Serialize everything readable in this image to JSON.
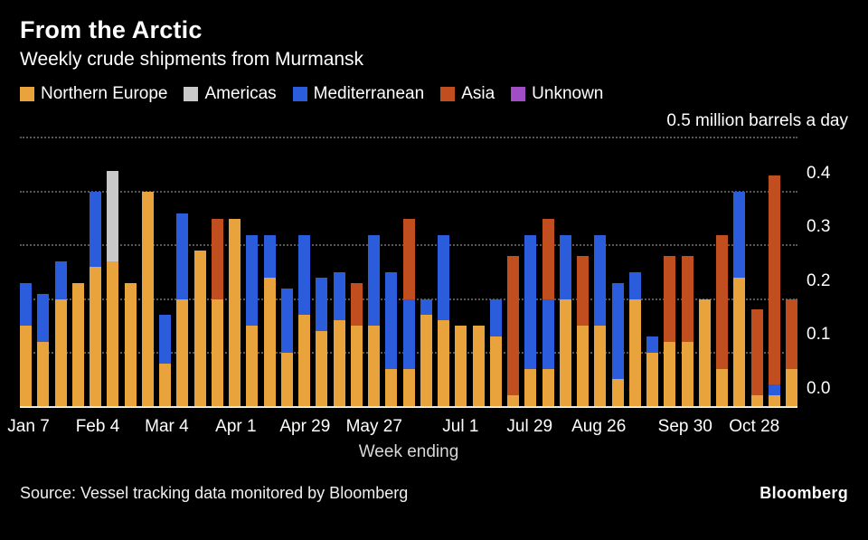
{
  "header": {
    "title": "From the Arctic",
    "subtitle": "Weekly crude shipments from Murmansk"
  },
  "legend": {
    "items": [
      {
        "label": "Northern Europe",
        "color": "#E8A33D"
      },
      {
        "label": "Americas",
        "color": "#C9C9C9"
      },
      {
        "label": "Mediterranean",
        "color": "#2A5CDC"
      },
      {
        "label": "Asia",
        "color": "#C04E1F"
      },
      {
        "label": "Unknown",
        "color": "#A14EC4"
      }
    ]
  },
  "chart": {
    "unit_label": "0.5 million barrels a day",
    "xlabel": "Week ending",
    "y_ticks": [
      "0.0",
      "0.1",
      "0.2",
      "0.3",
      "0.4"
    ]
  },
  "chart_data": {
    "type": "stacked-bar",
    "title": "From the Arctic",
    "subtitle": "Weekly crude shipments from Murmansk",
    "ylabel": "million barrels a day",
    "ylim": [
      0,
      0.5
    ],
    "grid": true,
    "legend_position": "top",
    "n_weeks": 45,
    "x_tick_labels": [
      {
        "index": 0,
        "label": "Jan 7"
      },
      {
        "index": 4,
        "label": "Feb 4"
      },
      {
        "index": 8,
        "label": "Mar 4"
      },
      {
        "index": 12,
        "label": "Apr 1"
      },
      {
        "index": 16,
        "label": "Apr 29"
      },
      {
        "index": 20,
        "label": "May 27"
      },
      {
        "index": 25,
        "label": "Jul 1"
      },
      {
        "index": 29,
        "label": "Jul 29"
      },
      {
        "index": 33,
        "label": "Aug 26"
      },
      {
        "index": 38,
        "label": "Sep 30"
      },
      {
        "index": 42,
        "label": "Oct 28"
      }
    ],
    "series": [
      {
        "name": "Northern Europe",
        "color": "#E8A33D",
        "values": [
          0.15,
          0.12,
          0.2,
          0.23,
          0.26,
          0.27,
          0.23,
          0.4,
          0.08,
          0.2,
          0.29,
          0.2,
          0.35,
          0.15,
          0.24,
          0.1,
          0.17,
          0.14,
          0.16,
          0.15,
          0.15,
          0.07,
          0.07,
          0.17,
          0.16,
          0.15,
          0.15,
          0.13,
          0.02,
          0.07,
          0.07,
          0.2,
          0.15,
          0.15,
          0.05,
          0.2,
          0.1,
          0.12,
          0.12,
          0.2,
          0.07,
          0.24,
          0.02,
          0.02,
          0.07
        ]
      },
      {
        "name": "Americas",
        "color": "#C9C9C9",
        "values": [
          0,
          0,
          0,
          0,
          0,
          0.17,
          0,
          0,
          0,
          0,
          0,
          0,
          0,
          0,
          0,
          0,
          0,
          0,
          0,
          0,
          0,
          0,
          0,
          0,
          0,
          0,
          0,
          0,
          0,
          0,
          0,
          0,
          0,
          0,
          0,
          0,
          0,
          0,
          0,
          0,
          0,
          0,
          0,
          0,
          0
        ]
      },
      {
        "name": "Mediterranean",
        "color": "#2A5CDC",
        "values": [
          0.08,
          0.09,
          0.07,
          0,
          0.14,
          0,
          0,
          0,
          0.09,
          0.16,
          0,
          0,
          0,
          0.17,
          0.08,
          0.12,
          0.15,
          0.1,
          0.09,
          0,
          0.17,
          0.18,
          0.13,
          0.03,
          0.16,
          0,
          0,
          0.07,
          0,
          0.25,
          0.13,
          0.12,
          0,
          0.17,
          0.18,
          0.05,
          0.03,
          0,
          0,
          0,
          0,
          0.16,
          0,
          0.02,
          0
        ]
      },
      {
        "name": "Asia",
        "color": "#C04E1F",
        "values": [
          0,
          0,
          0,
          0,
          0,
          0,
          0,
          0,
          0,
          0,
          0,
          0.15,
          0,
          0,
          0,
          0,
          0,
          0,
          0,
          0.08,
          0,
          0,
          0.15,
          0,
          0,
          0,
          0,
          0,
          0.26,
          0,
          0.15,
          0,
          0.13,
          0,
          0,
          0,
          0,
          0.16,
          0.16,
          0,
          0.25,
          0,
          0.16,
          0.39,
          0.13
        ]
      },
      {
        "name": "Unknown",
        "color": "#A14EC4",
        "values": [
          0,
          0,
          0,
          0,
          0,
          0,
          0,
          0,
          0,
          0,
          0,
          0,
          0,
          0,
          0,
          0,
          0,
          0,
          0,
          0,
          0,
          0,
          0,
          0,
          0,
          0,
          0,
          0,
          0,
          0,
          0,
          0,
          0,
          0,
          0,
          0,
          0,
          0,
          0,
          0,
          0,
          0,
          0,
          0,
          0
        ]
      }
    ]
  },
  "footer": {
    "source": "Source: Vessel tracking data monitored by Bloomberg",
    "logo": "Bloomberg"
  }
}
